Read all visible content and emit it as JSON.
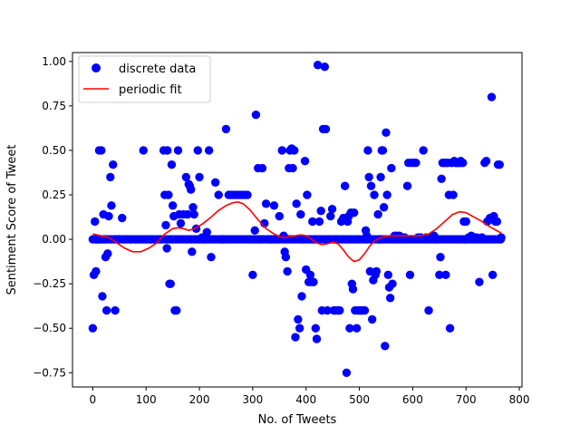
{
  "chart_data": {
    "type": "scatter",
    "xlabel": "No. of Tweets",
    "ylabel": "Sentiment Score of Tweet",
    "xlim": [
      -38,
      805
    ],
    "ylim": [
      -0.83,
      1.05
    ],
    "xticks": [
      0,
      100,
      200,
      300,
      400,
      500,
      600,
      700,
      800
    ],
    "yticks": [
      -0.75,
      -0.5,
      -0.25,
      0.0,
      0.25,
      0.5,
      0.75,
      1.0
    ],
    "xtick_labels": [
      "0",
      "100",
      "200",
      "300",
      "400",
      "500",
      "600",
      "700",
      "800"
    ],
    "ytick_labels": [
      "−0.75",
      "−0.50",
      "−0.25",
      "0.00",
      "0.25",
      "0.50",
      "0.75",
      "1.00"
    ],
    "grid": false,
    "legend_position": "top-left",
    "series": [
      {
        "name": "discrete data",
        "kind": "scatter",
        "color": "#0000ff",
        "points": [
          [
            0,
            -0.5
          ],
          [
            2,
            -0.2
          ],
          [
            4,
            0.1
          ],
          [
            6,
            -0.18
          ],
          [
            8,
            0
          ],
          [
            10,
            0
          ],
          [
            12,
            0.5
          ],
          [
            14,
            0
          ],
          [
            16,
            0.5
          ],
          [
            18,
            -0.32
          ],
          [
            20,
            0.14
          ],
          [
            22,
            0
          ],
          [
            24,
            -0.1
          ],
          [
            26,
            -0.4
          ],
          [
            28,
            -0.08
          ],
          [
            30,
            0.13
          ],
          [
            33,
            0.35
          ],
          [
            35,
            0.19
          ],
          [
            38,
            0.42
          ],
          [
            42,
            -0.4
          ],
          [
            45,
            0
          ],
          [
            50,
            0
          ],
          [
            55,
            0.12
          ],
          [
            60,
            0
          ],
          [
            70,
            0
          ],
          [
            80,
            0
          ],
          [
            90,
            0
          ],
          [
            95,
            0.5
          ],
          [
            100,
            0
          ],
          [
            110,
            0
          ],
          [
            120,
            0
          ],
          [
            128,
            0
          ],
          [
            133,
            0.5
          ],
          [
            135,
            0.25
          ],
          [
            137,
            0.08
          ],
          [
            139,
            -0.05
          ],
          [
            140,
            0.5
          ],
          [
            142,
            0.25
          ],
          [
            144,
            -0.25
          ],
          [
            146,
            -0.25
          ],
          [
            148,
            0.42
          ],
          [
            150,
            0.19
          ],
          [
            152,
            0.13
          ],
          [
            154,
            -0.4
          ],
          [
            157,
            -0.4
          ],
          [
            160,
            0.5
          ],
          [
            162,
            0.14
          ],
          [
            165,
            0.09
          ],
          [
            170,
            0.14
          ],
          [
            175,
            0.35
          ],
          [
            178,
            0.14
          ],
          [
            180,
            0.31
          ],
          [
            182,
            0.3
          ],
          [
            184,
            0.28
          ],
          [
            186,
            -0.07
          ],
          [
            188,
            0.18
          ],
          [
            190,
            0.14
          ],
          [
            194,
            0.06
          ],
          [
            197,
            0.5
          ],
          [
            200,
            0.35
          ],
          [
            205,
            0.01
          ],
          [
            210,
            0
          ],
          [
            214,
            0.04
          ],
          [
            218,
            0.5
          ],
          [
            222,
            -0.1
          ],
          [
            230,
            0.32
          ],
          [
            236,
            0.25
          ],
          [
            240,
            0
          ],
          [
            245,
            0
          ],
          [
            250,
            0.62
          ],
          [
            255,
            0.25
          ],
          [
            260,
            0.25
          ],
          [
            265,
            0.25
          ],
          [
            270,
            0.25
          ],
          [
            275,
            0.25
          ],
          [
            280,
            0.25
          ],
          [
            285,
            0.25
          ],
          [
            290,
            0.25
          ],
          [
            295,
            0
          ],
          [
            300,
            -0.2
          ],
          [
            304,
            0.05
          ],
          [
            306,
            0.7
          ],
          [
            310,
            0.4
          ],
          [
            315,
            0
          ],
          [
            318,
            0.4
          ],
          [
            322,
            0.09
          ],
          [
            325,
            0.2
          ],
          [
            330,
            0
          ],
          [
            335,
            0
          ],
          [
            340,
            0.19
          ],
          [
            345,
            0
          ],
          [
            350,
            0.13
          ],
          [
            355,
            0.5
          ],
          [
            358,
            0.02
          ],
          [
            360,
            -0.07
          ],
          [
            362,
            -0.1
          ],
          [
            365,
            -0.18
          ],
          [
            368,
            0.4
          ],
          [
            370,
            0.5
          ],
          [
            373,
            0.51
          ],
          [
            375,
            0.4
          ],
          [
            378,
            0.5
          ],
          [
            380,
            -0.55
          ],
          [
            382,
            0.2
          ],
          [
            385,
            -0.45
          ],
          [
            388,
            -0.5
          ],
          [
            390,
            0.14
          ],
          [
            392,
            -0.32
          ],
          [
            395,
            0
          ],
          [
            398,
            0.44
          ],
          [
            400,
            -0.17
          ],
          [
            402,
            0.25
          ],
          [
            405,
            -0.24
          ],
          [
            408,
            -0.2
          ],
          [
            410,
            -0.24
          ],
          [
            412,
            0.1
          ],
          [
            414,
            -0.24
          ],
          [
            416,
            0
          ],
          [
            418,
            -0.5
          ],
          [
            420,
            -0.56
          ],
          [
            422,
            0.98
          ],
          [
            425,
            0.1
          ],
          [
            428,
            0.16
          ],
          [
            430,
            -0.4
          ],
          [
            432,
            0.62
          ],
          [
            435,
            0.97
          ],
          [
            437,
            0.62
          ],
          [
            440,
            -0.4
          ],
          [
            443,
            0
          ],
          [
            446,
            0.13
          ],
          [
            449,
            0.17
          ],
          [
            452,
            -0.4
          ],
          [
            455,
            -0.4
          ],
          [
            458,
            0
          ],
          [
            460,
            -0.4
          ],
          [
            463,
            -0.4
          ],
          [
            466,
            0.1
          ],
          [
            470,
            0.12
          ],
          [
            473,
            0.3
          ],
          [
            476,
            -0.75
          ],
          [
            478,
            0.1
          ],
          [
            480,
            0.13
          ],
          [
            482,
            -0.5
          ],
          [
            484,
            0.15
          ],
          [
            486,
            -0.25
          ],
          [
            488,
            -0.28
          ],
          [
            490,
            0.15
          ],
          [
            492,
            -0.4
          ],
          [
            495,
            -0.5
          ],
          [
            497,
            -0.4
          ],
          [
            500,
            -0.4
          ],
          [
            503,
            -0.4
          ],
          [
            506,
            -0.4
          ],
          [
            510,
            -0.4
          ],
          [
            512,
            0.05
          ],
          [
            514,
            0.02
          ],
          [
            516,
            0.5
          ],
          [
            518,
            0.35
          ],
          [
            520,
            -0.18
          ],
          [
            522,
            0.3
          ],
          [
            524,
            -0.45
          ],
          [
            526,
            -0.23
          ],
          [
            528,
            0.25
          ],
          [
            530,
            -0.2
          ],
          [
            532,
            -0.18
          ],
          [
            535,
            0.14
          ],
          [
            538,
            0
          ],
          [
            540,
            0.35
          ],
          [
            542,
            0.5
          ],
          [
            544,
            0.5
          ],
          [
            546,
            0.18
          ],
          [
            548,
            -0.6
          ],
          [
            550,
            0.6
          ],
          [
            552,
            0.25
          ],
          [
            554,
            -0.2
          ],
          [
            556,
            -0.27
          ],
          [
            558,
            -0.33
          ],
          [
            560,
            0.4
          ],
          [
            562,
            -0.25
          ],
          [
            566,
            0.02
          ],
          [
            570,
            0.02
          ],
          [
            575,
            0.02
          ],
          [
            580,
            0.01
          ],
          [
            585,
            0.01
          ],
          [
            590,
            0.3
          ],
          [
            592,
            0.43
          ],
          [
            595,
            -0.2
          ],
          [
            598,
            0.43
          ],
          [
            602,
            0.43
          ],
          [
            606,
            0.43
          ],
          [
            610,
            0.01
          ],
          [
            615,
            0.01
          ],
          [
            620,
            0.5
          ],
          [
            625,
            0.01
          ],
          [
            630,
            -0.4
          ],
          [
            635,
            0.01
          ],
          [
            640,
            0.02
          ],
          [
            645,
            0
          ],
          [
            650,
            -0.2
          ],
          [
            652,
            -0.1
          ],
          [
            654,
            0.34
          ],
          [
            656,
            0.43
          ],
          [
            658,
            0.43
          ],
          [
            660,
            0.43
          ],
          [
            662,
            -0.2
          ],
          [
            664,
            0.43
          ],
          [
            666,
            0.43
          ],
          [
            668,
            0.25
          ],
          [
            670,
            -0.5
          ],
          [
            672,
            0.43
          ],
          [
            674,
            0.43
          ],
          [
            676,
            0.25
          ],
          [
            678,
            0.44
          ],
          [
            680,
            0.43
          ],
          [
            682,
            0.43
          ],
          [
            684,
            0.43
          ],
          [
            686,
            0.43
          ],
          [
            688,
            0.43
          ],
          [
            690,
            0.44
          ],
          [
            692,
            0.43
          ],
          [
            694,
            0.43
          ],
          [
            696,
            0.1
          ],
          [
            698,
            0
          ],
          [
            700,
            0.1
          ],
          [
            705,
            0.01
          ],
          [
            710,
            0.02
          ],
          [
            715,
            0.01
          ],
          [
            720,
            0.01
          ],
          [
            725,
            -0.24
          ],
          [
            730,
            0.01
          ],
          [
            735,
            0.43
          ],
          [
            738,
            0.44
          ],
          [
            740,
            0.1
          ],
          [
            745,
            0.12
          ],
          [
            748,
            0.8
          ],
          [
            750,
            -0.2
          ],
          [
            752,
            0.13
          ],
          [
            755,
            0.1
          ],
          [
            758,
            0.1
          ],
          [
            760,
            0.42
          ],
          [
            763,
            0.42
          ],
          [
            766,
            0.01
          ]
        ],
        "baseline": {
          "y": 0.0,
          "x_from": 0,
          "x_to": 766,
          "step": 5
        }
      },
      {
        "name": "periodic fit",
        "kind": "line",
        "color": "#ff0000",
        "points": [
          [
            0,
            0.03
          ],
          [
            15,
            0.02
          ],
          [
            30,
            0.01
          ],
          [
            45,
            -0.02
          ],
          [
            60,
            -0.05
          ],
          [
            75,
            -0.07
          ],
          [
            90,
            -0.07
          ],
          [
            105,
            -0.05
          ],
          [
            120,
            -0.02
          ],
          [
            135,
            0.03
          ],
          [
            150,
            0.06
          ],
          [
            160,
            0.065
          ],
          [
            170,
            0.06
          ],
          [
            180,
            0.05
          ],
          [
            190,
            0.06
          ],
          [
            205,
            0.085
          ],
          [
            220,
            0.12
          ],
          [
            235,
            0.16
          ],
          [
            250,
            0.19
          ],
          [
            262,
            0.205
          ],
          [
            272,
            0.21
          ],
          [
            282,
            0.2
          ],
          [
            295,
            0.165
          ],
          [
            310,
            0.11
          ],
          [
            325,
            0.06
          ],
          [
            340,
            0.03
          ],
          [
            350,
            0.015
          ],
          [
            360,
            0.01
          ],
          [
            370,
            0.015
          ],
          [
            380,
            0.02
          ],
          [
            390,
            0.025
          ],
          [
            400,
            0.02
          ],
          [
            410,
            0.0
          ],
          [
            420,
            -0.02
          ],
          [
            430,
            -0.03
          ],
          [
            440,
            -0.025
          ],
          [
            450,
            -0.015
          ],
          [
            460,
            -0.025
          ],
          [
            470,
            -0.06
          ],
          [
            480,
            -0.1
          ],
          [
            490,
            -0.125
          ],
          [
            500,
            -0.115
          ],
          [
            510,
            -0.08
          ],
          [
            520,
            -0.035
          ],
          [
            530,
            -0.005
          ],
          [
            540,
            0.01
          ],
          [
            555,
            0.02
          ],
          [
            570,
            0.02
          ],
          [
            585,
            0.02
          ],
          [
            600,
            0.02
          ],
          [
            615,
            0.02
          ],
          [
            630,
            0.03
          ],
          [
            645,
            0.06
          ],
          [
            660,
            0.1
          ],
          [
            675,
            0.14
          ],
          [
            688,
            0.155
          ],
          [
            700,
            0.15
          ],
          [
            715,
            0.125
          ],
          [
            730,
            0.1
          ],
          [
            745,
            0.07
          ],
          [
            760,
            0.045
          ],
          [
            766,
            0.035
          ]
        ]
      }
    ]
  }
}
